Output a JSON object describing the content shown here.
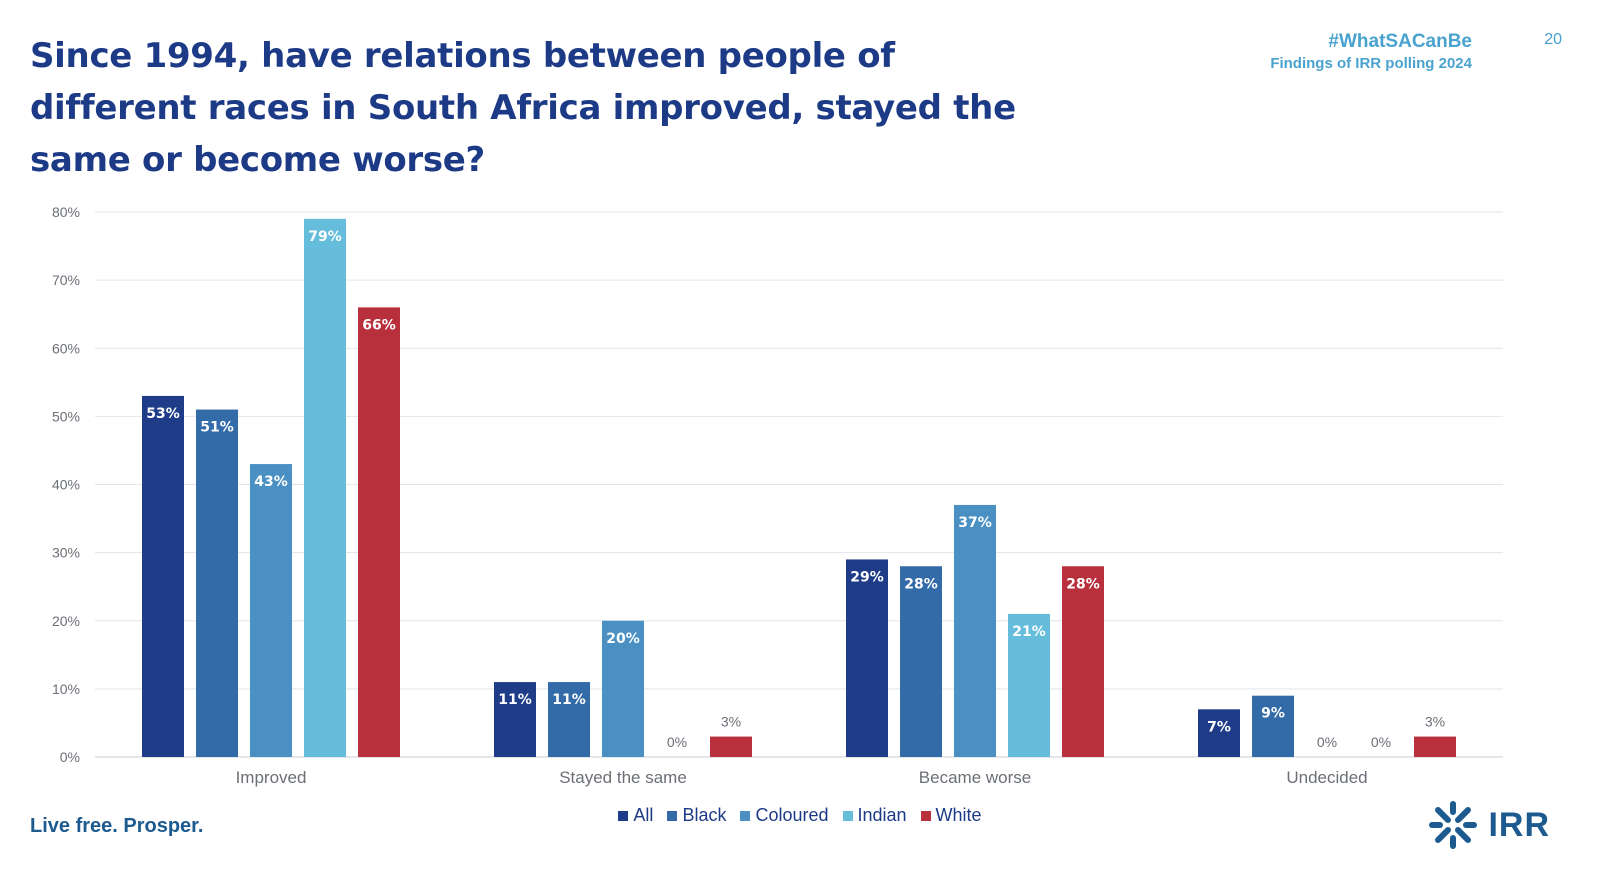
{
  "header": {
    "title": "Since 1994, have relations between people of different races in South Africa improved, stayed the same or become worse?",
    "hashtag": "#WhatSACanBe",
    "subtitle": "Findings of IRR polling 2024",
    "page_number": "20"
  },
  "footer": {
    "tagline": "Live free. Prosper.",
    "logo_text": "IRR",
    "logo_icon": "irr-logo-icon"
  },
  "colors": {
    "title": "#1c3a86",
    "accent": "#4aa3cf",
    "All": "#1f3c88",
    "Black": "#336aa8",
    "Coloured": "#4a90c2",
    "Indian": "#66bddb",
    "White": "#b8303b"
  },
  "chart_data": {
    "type": "bar",
    "categories": [
      "Improved",
      "Stayed the same",
      "Became worse",
      "Undecided"
    ],
    "series": [
      {
        "name": "All",
        "values": [
          53,
          11,
          29,
          7
        ],
        "labels": [
          "53%",
          "11%",
          "29%",
          "7%"
        ]
      },
      {
        "name": "Black",
        "values": [
          51,
          11,
          28,
          9
        ],
        "labels": [
          "51%",
          "11%",
          "28%",
          "9%"
        ]
      },
      {
        "name": "Coloured",
        "values": [
          43,
          20,
          37,
          0
        ],
        "labels": [
          "43%",
          "20%",
          "37%",
          "0%"
        ]
      },
      {
        "name": "Indian",
        "values": [
          79,
          0,
          21,
          0
        ],
        "labels": [
          "79%",
          "0%",
          "21%",
          "0%"
        ]
      },
      {
        "name": "White",
        "values": [
          66,
          3,
          28,
          3
        ],
        "labels": [
          "66%",
          "3%",
          "28%",
          "3%"
        ]
      }
    ],
    "y_ticks": [
      "0%",
      "10%",
      "20%",
      "30%",
      "40%",
      "50%",
      "60%",
      "70%",
      "80%"
    ],
    "ylim": [
      0,
      80
    ],
    "grid": true,
    "legend_position": "bottom"
  }
}
